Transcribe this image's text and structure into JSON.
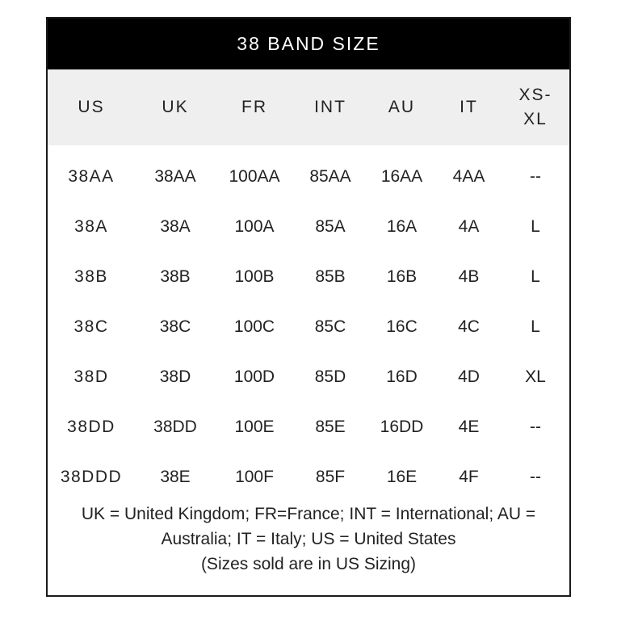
{
  "title": "38 BAND SIZE",
  "columns": [
    "US",
    "UK",
    "FR",
    "INT",
    "AU",
    "IT",
    "XS-XL"
  ],
  "rows": [
    [
      "38AA",
      "38AA",
      "100AA",
      "85AA",
      "16AA",
      "4AA",
      "--"
    ],
    [
      "38A",
      "38A",
      "100A",
      "85A",
      "16A",
      "4A",
      "L"
    ],
    [
      "38B",
      "38B",
      "100B",
      "85B",
      "16B",
      "4B",
      "L"
    ],
    [
      "38C",
      "38C",
      "100C",
      "85C",
      "16C",
      "4C",
      "L"
    ],
    [
      "38D",
      "38D",
      "100D",
      "85D",
      "16D",
      "4D",
      "XL"
    ],
    [
      "38DD",
      "38DD",
      "100E",
      "85E",
      "16DD",
      "4E",
      "--"
    ],
    [
      "38DDD",
      "38E",
      "100F",
      "85F",
      "16E",
      "4F",
      "--"
    ]
  ],
  "footnote": {
    "legend": "UK = United Kingdom; FR=France; INT = International; AU = Australia; IT = Italy; US = United States",
    "note": "(Sizes sold are in US Sizing)"
  }
}
